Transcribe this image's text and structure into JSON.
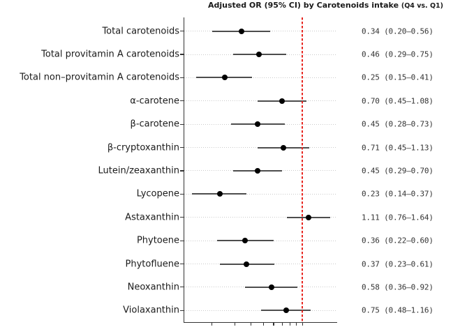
{
  "figure": {
    "title": "Adjusted OR (95% CI) by Carotenoids intake",
    "title_suffix": "(Q4 vs. Q1)"
  },
  "chart_data": {
    "type": "scatter",
    "subtype": "forest_plot",
    "title": "Adjusted OR (95% CI) by Carotenoids intake (Q4 vs. Q1)",
    "xlabel": "",
    "ylabel": "",
    "legend_position": "none",
    "x_axis": {
      "scale": "log",
      "range": [
        0.122,
        1.86
      ],
      "ticks": [
        0.2,
        0.3,
        0.4,
        0.5,
        0.6,
        0.7,
        0.8,
        0.9,
        1.0
      ],
      "tick_labels_visible": false,
      "reference_line": 1.0
    },
    "grid": "dotted horizontal row guides",
    "rows": [
      {
        "label": "Total carotenoids",
        "or": 0.34,
        "ci_low": 0.2,
        "ci_high": 0.56,
        "display": "0.34 (0.20–0.56)"
      },
      {
        "label": "Total provitamin A carotenoids",
        "or": 0.46,
        "ci_low": 0.29,
        "ci_high": 0.75,
        "display": "0.46 (0.29–0.75)"
      },
      {
        "label": "Total non–provitamin A carotenoids",
        "or": 0.25,
        "ci_low": 0.15,
        "ci_high": 0.41,
        "display": "0.25 (0.15–0.41)"
      },
      {
        "label": "α-carotene",
        "or": 0.7,
        "ci_low": 0.45,
        "ci_high": 1.08,
        "display": "0.70 (0.45–1.08)"
      },
      {
        "label": "β-carotene",
        "or": 0.45,
        "ci_low": 0.28,
        "ci_high": 0.73,
        "display": "0.45 (0.28–0.73)"
      },
      {
        "label": "β-cryptoxanthin",
        "or": 0.71,
        "ci_low": 0.45,
        "ci_high": 1.13,
        "display": "0.71 (0.45–1.13)"
      },
      {
        "label": "Lutein/zeaxanthin",
        "or": 0.45,
        "ci_low": 0.29,
        "ci_high": 0.7,
        "display": "0.45 (0.29–0.70)"
      },
      {
        "label": "Lycopene",
        "or": 0.23,
        "ci_low": 0.14,
        "ci_high": 0.37,
        "display": "0.23 (0.14–0.37)"
      },
      {
        "label": "Astaxanthin",
        "or": 1.11,
        "ci_low": 0.76,
        "ci_high": 1.64,
        "display": "1.11 (0.76–1.64)"
      },
      {
        "label": "Phytoene",
        "or": 0.36,
        "ci_low": 0.22,
        "ci_high": 0.6,
        "display": "0.36 (0.22–0.60)"
      },
      {
        "label": "Phytofluene",
        "or": 0.37,
        "ci_low": 0.23,
        "ci_high": 0.61,
        "display": "0.37 (0.23–0.61)"
      },
      {
        "label": "Neoxanthin",
        "or": 0.58,
        "ci_low": 0.36,
        "ci_high": 0.92,
        "display": "0.58 (0.36–0.92)"
      },
      {
        "label": "Violaxanthin",
        "or": 0.75,
        "ci_low": 0.48,
        "ci_high": 1.16,
        "display": "0.75 (0.48–1.16)"
      }
    ]
  },
  "colors": {
    "point": "#000000",
    "ci_line": "#4d4d4d",
    "row_guide": "#c9c9c9",
    "reference_line": "#e8251f",
    "axis": "#333333",
    "label_text": "#1a1a1a",
    "value_text": "#333333",
    "background": "#ffffff"
  }
}
